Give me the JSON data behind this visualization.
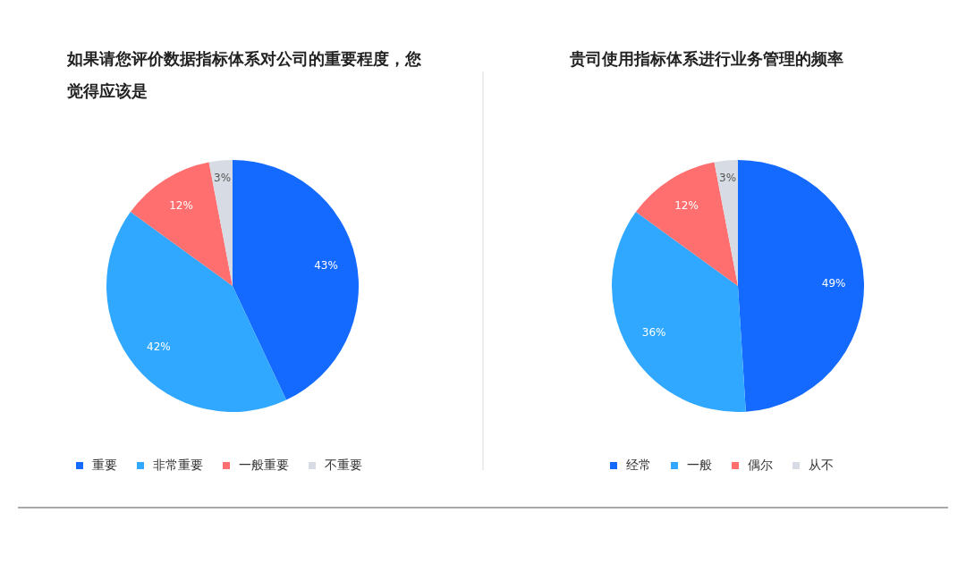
{
  "chart_data": [
    {
      "type": "pie",
      "title": "如果请您评价数据指标体系对公司的重要程度，您觉得应该是",
      "categories": [
        "重要",
        "非常重要",
        "一般重要",
        "不重要"
      ],
      "values": [
        43,
        42,
        12,
        3
      ],
      "colors": [
        "#1469ff",
        "#30a8ff",
        "#ff6f6f",
        "#d7dbe3"
      ],
      "value_labels": [
        "43%",
        "42%",
        "12%",
        "3%"
      ],
      "legend": "bottom"
    },
    {
      "type": "pie",
      "title": "贵司使用指标体系进行业务管理的频率",
      "categories": [
        "经常",
        "一般",
        "偶尔",
        "从不"
      ],
      "values": [
        49,
        36,
        12,
        3
      ],
      "colors": [
        "#1469ff",
        "#30a8ff",
        "#ff6f6f",
        "#d7dbe3"
      ],
      "value_labels": [
        "49%",
        "36%",
        "12%",
        "3%"
      ],
      "legend": "bottom"
    }
  ]
}
